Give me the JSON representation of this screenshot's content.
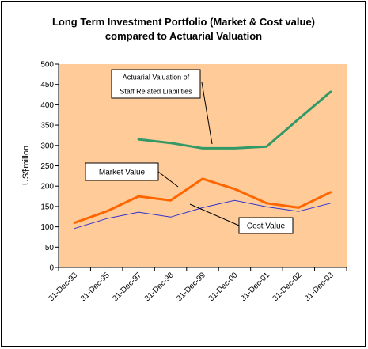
{
  "chart_data": {
    "type": "line",
    "title": [
      "Long Term Investment Portfolio (Market & Cost value)",
      "compared to Actuarial Valuation"
    ],
    "xlabel": "",
    "ylabel": "US$millon",
    "ylim": [
      0,
      500
    ],
    "yticks": [
      "0",
      "50",
      "100",
      "150",
      "200",
      "250",
      "300",
      "350",
      "400",
      "450",
      "500"
    ],
    "categories": [
      "31-Dec-93",
      "31-Dec-95",
      "31-Dec-97",
      "31-Dec-98",
      "31-Dec-99",
      "31-Dec-00",
      "31-Dec-01",
      "31-Dec-02",
      "31-Dec-03"
    ],
    "grid": false,
    "plot_background": "#FFCC99",
    "series": [
      {
        "name": "Market Value",
        "color": "#FF6600",
        "x": [
          0,
          1,
          2,
          3,
          4,
          5,
          6,
          7,
          8
        ],
        "values": [
          110,
          138,
          175,
          165,
          218,
          193,
          158,
          147,
          185
        ]
      },
      {
        "name": "Cost Value",
        "color": "#3333CC",
        "x": [
          0,
          1,
          2,
          3,
          4,
          5,
          6,
          7,
          8
        ],
        "values": [
          96,
          120,
          136,
          124,
          147,
          165,
          149,
          138,
          158
        ]
      },
      {
        "name": "Actuarial Valuation of Staff Related Liabilities",
        "color": "#339966",
        "x": [
          2,
          3,
          4,
          5,
          6,
          7,
          8
        ],
        "values": [
          315,
          306,
          293,
          293,
          297,
          365,
          432
        ]
      }
    ],
    "annotations": [
      {
        "series": "Actuarial Valuation of Staff Related Liabilities",
        "lines": [
          "Actuarial Valuation of",
          "Staff Related Liabilities"
        ]
      },
      {
        "series": "Market Value",
        "lines": [
          "Market Value"
        ]
      },
      {
        "series": "Cost Value",
        "lines": [
          "Cost Value"
        ]
      }
    ]
  }
}
